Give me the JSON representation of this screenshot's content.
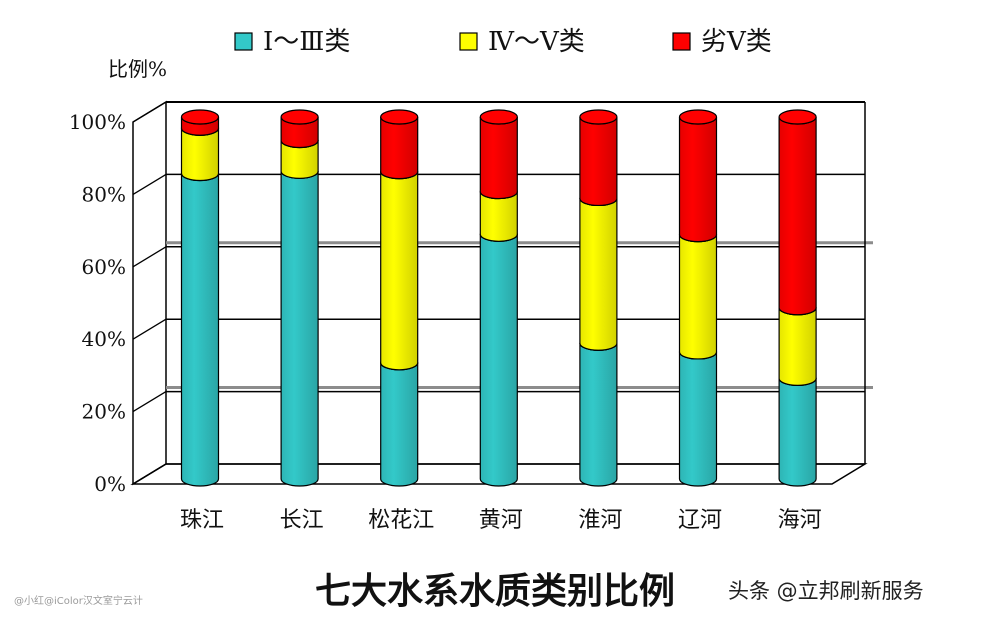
{
  "chart_data": {
    "type": "bar",
    "stacked": true,
    "title": "七大水系水质类别比例",
    "ylabel": "比例%",
    "xlabel": "",
    "ylim": [
      0,
      100
    ],
    "yticks": [
      "0%",
      "20%",
      "40%",
      "60%",
      "80%",
      "100%"
    ],
    "grid": true,
    "legend_position": "top",
    "categories": [
      "珠江",
      "长江",
      "松花江",
      "黄河",
      "淮河",
      "辽河",
      "海河"
    ],
    "series": [
      {
        "name": "Ⅰ～Ⅲ类",
        "color": "#33c9c9",
        "values": [
          84.4,
          85.0,
          32.1,
          67.6,
          37.5,
          35.1,
          27.8
        ]
      },
      {
        "name": "Ⅳ～Ⅴ类",
        "color": "#ffff00",
        "values": [
          12.5,
          8.5,
          52.8,
          11.8,
          40.0,
          32.4,
          19.5
        ]
      },
      {
        "name": "劣Ⅴ类",
        "color": "#ff0000",
        "values": [
          3.1,
          6.5,
          15.1,
          20.6,
          22.5,
          32.5,
          52.7
        ]
      }
    ]
  },
  "watermark": {
    "main": "头条 @立邦刷新服务",
    "small": "@小红@iColor汉文室宁云计"
  }
}
